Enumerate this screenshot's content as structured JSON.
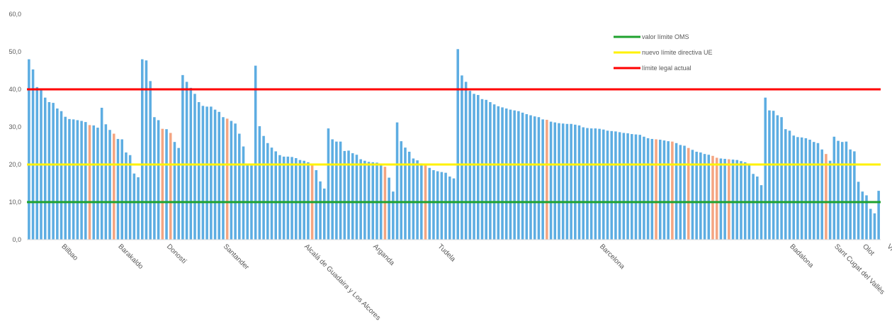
{
  "chart_data": {
    "type": "bar",
    "title": "",
    "xlabel": "",
    "ylabel": "",
    "ylim": [
      0,
      60
    ],
    "yticks": [
      "0,0",
      "10,0",
      "20,0",
      "30,0",
      "40,0",
      "50,0",
      "60,0"
    ],
    "grid": false,
    "legend_position": "top-right",
    "colors": {
      "bar": "#5DADE2",
      "bar_highlight": "#F4A582",
      "who_limit": "#1FA22E",
      "eu_limit": "#FFF200",
      "legal_limit": "#FF0000",
      "axis_text": "#595959"
    },
    "series": [
      {
        "values": [
          48.0,
          45.3,
          40.6,
          39.8,
          37.8,
          36.6,
          36.4,
          34.9,
          34.2,
          32.7,
          32.1,
          32.0,
          31.8,
          31.6,
          31.3,
          30.5,
          30.4,
          29.8,
          35.1,
          30.7,
          29.2,
          28.2,
          26.8,
          26.7,
          23.2,
          22.5,
          17.6,
          16.6,
          48.0,
          47.7,
          42.2,
          32.6,
          31.8,
          29.5,
          29.4,
          28.4,
          26.0,
          24.4,
          43.8,
          42.0,
          40.4,
          38.8,
          36.6,
          35.6,
          35.4,
          35.4,
          34.6,
          34.0,
          32.6,
          32.2,
          31.6,
          30.9,
          28.2,
          24.8,
          20.0,
          19.7,
          46.3,
          30.2,
          27.6,
          25.7,
          24.5,
          23.5,
          22.5,
          22.1,
          22.1,
          22.0,
          21.7,
          21.2,
          21.0,
          20.6,
          20.2,
          18.5,
          15.5,
          13.6,
          29.6,
          26.7,
          26.1,
          26.1,
          23.6,
          23.7,
          23.0,
          22.6,
          21.4,
          21.0,
          20.7,
          20.6,
          20.5,
          20.0,
          19.4,
          16.5,
          12.8,
          31.2,
          26.2,
          24.5,
          23.4,
          21.6,
          21.1,
          20.3,
          19.9,
          19.1,
          18.5,
          18.2,
          18.0,
          17.8,
          16.8,
          16.3,
          50.7,
          43.7,
          42.0,
          39.6,
          38.8,
          38.5,
          37.4,
          37.2,
          36.6,
          36.0,
          35.5,
          35.2,
          34.9,
          34.6,
          34.4,
          34.2,
          33.8,
          33.4,
          33.1,
          32.8,
          32.6,
          32.0,
          31.9,
          31.4,
          31.2,
          31.0,
          30.9,
          30.8,
          30.8,
          30.6,
          30.4,
          29.9,
          29.7,
          29.6,
          29.6,
          29.5,
          29.3,
          29.0,
          28.9,
          28.8,
          28.6,
          28.4,
          28.3,
          28.1,
          28.0,
          27.9,
          27.4,
          27.0,
          26.8,
          26.7,
          26.6,
          26.4,
          26.2,
          26.1,
          25.7,
          25.2,
          25.0,
          24.4,
          23.9,
          23.4,
          23.2,
          22.8,
          22.6,
          22.3,
          21.8,
          21.6,
          21.5,
          21.4,
          21.3,
          21.2,
          20.9,
          20.6,
          19.8,
          17.5,
          16.8,
          14.5,
          37.8,
          34.4,
          34.3,
          33.1,
          32.6,
          29.4,
          29.0,
          27.7,
          27.3,
          27.2,
          27.0,
          26.6,
          26.0,
          25.7,
          24.0,
          22.8,
          21.0,
          27.4,
          26.3,
          26.0,
          26.1,
          24.0,
          23.5,
          15.4,
          12.8,
          11.8,
          8.2,
          7.0,
          13.0
        ],
        "highlight_indices": [
          15,
          21,
          33,
          35,
          49,
          70,
          88,
          98,
          128,
          155,
          159,
          163,
          169,
          170,
          173,
          197
        ]
      }
    ],
    "category_labels": [
      {
        "bar_index": 8,
        "text": "Bilbao"
      },
      {
        "bar_index": 22,
        "text": "Barakaldo"
      },
      {
        "bar_index": 34,
        "text": "Doností"
      },
      {
        "bar_index": 48,
        "text": "Santander"
      },
      {
        "bar_index": 68,
        "text": "Alcalá de Guadaira y Los Alcores"
      },
      {
        "bar_index": 85,
        "text": "Arganda"
      },
      {
        "bar_index": 101,
        "text": "Tudela"
      },
      {
        "bar_index": 141,
        "text": "Barcelona"
      },
      {
        "bar_index": 188,
        "text": "Badalona"
      },
      {
        "bar_index": 199,
        "text": "Sant Cugat del Vallès"
      },
      {
        "bar_index": 206,
        "text": "Olot"
      },
      {
        "bar_index": 212,
        "text": "Vielha"
      }
    ],
    "reference_lines": [
      {
        "name": "valor límite OMS",
        "value": 10,
        "color": "#1FA22E"
      },
      {
        "name": "nuevo límite directiva UE",
        "value": 20,
        "color": "#FFF200"
      },
      {
        "name": "límite legal actual",
        "value": 40,
        "color": "#FF0000"
      }
    ]
  }
}
